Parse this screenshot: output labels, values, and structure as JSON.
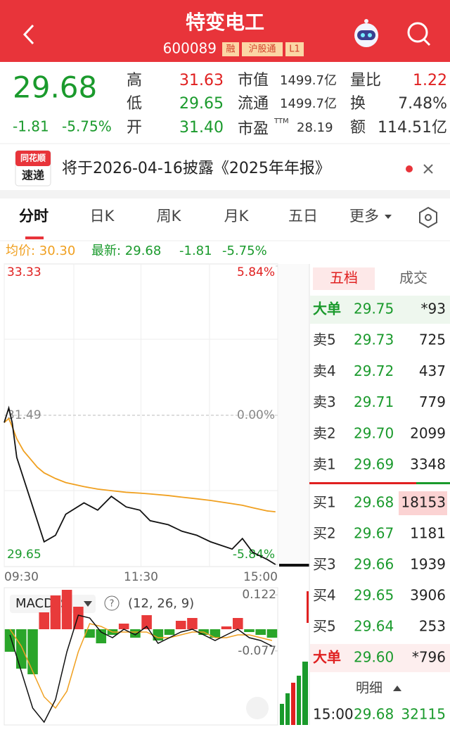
{
  "header": {
    "title": "特变电工",
    "code": "600089",
    "tags": [
      "融",
      "沪股通",
      "L1"
    ]
  },
  "quote": {
    "price": "29.68",
    "change": "-1.81",
    "percent": "-5.75%",
    "stats": [
      [
        "高",
        "31.63"
      ],
      [
        "低",
        "29.65"
      ],
      [
        "开",
        "31.40"
      ],
      [
        "市值",
        "1499.7亿"
      ],
      [
        "流通",
        "1499.7亿"
      ],
      [
        "市盈",
        "TTM",
        "28.19"
      ],
      [
        "量比",
        "1.22"
      ],
      [
        "换",
        "7.48%"
      ],
      [
        "额",
        "114.51亿"
      ]
    ]
  },
  "notice": {
    "logo_top": "同花顺",
    "logo_bottom": "速递",
    "text": "将于2026-04-16披露《2025年年报》"
  },
  "tabs": [
    "分时",
    "日K",
    "周K",
    "月K",
    "五日",
    "更多"
  ],
  "info": {
    "avg": "均价: 30.30",
    "latest": "最新: 29.68",
    "change": "-1.81",
    "percent": "-5.75%"
  },
  "chart_data": {
    "type": "line",
    "x": [
      0,
      4,
      7,
      11,
      17,
      23,
      29,
      35,
      45,
      54,
      70,
      82,
      94,
      107,
      119,
      128,
      144,
      156,
      169,
      181,
      200,
      209,
      218,
      231,
      238
    ],
    "price": [
      31.4,
      31.58,
      31.4,
      30.97,
      30.71,
      30.45,
      30.19,
      29.93,
      30.01,
      30.27,
      30.41,
      30.32,
      30.49,
      30.36,
      30.32,
      30.19,
      30.14,
      30.06,
      30.01,
      29.93,
      29.84,
      29.97,
      29.8,
      29.71,
      29.65
    ],
    "avg": [
      31.4,
      31.45,
      31.35,
      31.2,
      31.05,
      30.95,
      30.85,
      30.78,
      30.71,
      30.66,
      30.61,
      30.58,
      30.56,
      30.54,
      30.53,
      30.52,
      30.5,
      30.48,
      30.46,
      30.44,
      30.4,
      30.38,
      30.35,
      30.31,
      30.3
    ],
    "price_color": "#111111",
    "avg_color": "#f0a020",
    "xlim": [
      0,
      240
    ],
    "xticks": [
      {
        "value": 0,
        "label": "09:30"
      },
      {
        "value": 120,
        "label": "11:30"
      },
      {
        "value": 240,
        "label": "15:00"
      }
    ],
    "ylim": [
      29.65,
      33.33
    ],
    "yticks": [
      33.33,
      31.49,
      29.65
    ],
    "y2lim": [
      -5.84,
      5.84
    ],
    "y2ticks": [
      {
        "value": 5.84,
        "label": "5.84%"
      },
      {
        "value": 0,
        "label": "0.00%"
      },
      {
        "value": -5.84,
        "label": "-5.84%"
      }
    ]
  },
  "macd": {
    "type": "macd",
    "name": "MACDFS",
    "params": "(12, 26, 9)",
    "x": [
      5,
      15,
      25,
      35,
      45,
      55,
      65,
      75,
      85,
      95,
      105,
      115,
      125,
      135,
      145,
      155,
      165,
      175,
      185,
      195,
      205,
      215,
      225,
      235
    ],
    "hist": [
      -0.08,
      -0.14,
      -0.16,
      0.06,
      0.12,
      0.14,
      0.08,
      -0.03,
      -0.05,
      -0.02,
      0.02,
      -0.03,
      0.05,
      -0.04,
      -0.02,
      0.03,
      0.04,
      -0.02,
      -0.03,
      0.01,
      0.04,
      -0.01,
      -0.02,
      -0.03
    ],
    "dif": [
      -0.02,
      -0.15,
      -0.28,
      -0.33,
      -0.25,
      -0.08,
      0.05,
      0.04,
      -0.01,
      -0.03,
      0.0,
      -0.02,
      0.01,
      -0.05,
      -0.03,
      -0.01,
      0.0,
      -0.02,
      -0.04,
      -0.02,
      0.0,
      -0.03,
      -0.04,
      -0.06
    ],
    "dea": [
      0.0,
      -0.06,
      -0.15,
      -0.24,
      -0.28,
      -0.22,
      -0.08,
      0.02,
      0.01,
      -0.01,
      -0.01,
      -0.01,
      -0.01,
      -0.03,
      -0.03,
      -0.02,
      -0.01,
      -0.01,
      -0.03,
      -0.03,
      -0.02,
      -0.02,
      -0.03,
      -0.04
    ],
    "ylim": [
      -0.34,
      0.14
    ],
    "yticks": [
      0.122,
      -0.077
    ]
  },
  "order_book": {
    "tabs": [
      "五档",
      "成交"
    ],
    "rows": [
      [
        "大单",
        "29.75",
        "*93"
      ],
      [
        "卖5",
        "29.73",
        "725"
      ],
      [
        "卖4",
        "29.72",
        "437"
      ],
      [
        "卖3",
        "29.71",
        "779"
      ],
      [
        "卖2",
        "29.70",
        "2099"
      ],
      [
        "卖1",
        "29.69",
        "3348"
      ],
      [
        "买1",
        "29.68",
        "18153"
      ],
      [
        "买2",
        "29.67",
        "1181"
      ],
      [
        "买3",
        "29.66",
        "1939"
      ],
      [
        "买4",
        "29.65",
        "3906"
      ],
      [
        "买5",
        "29.64",
        "253"
      ],
      [
        "大单",
        "29.60",
        "*796"
      ]
    ],
    "detail": "明细",
    "trade": [
      "15:00",
      "29.68",
      "32115"
    ]
  }
}
